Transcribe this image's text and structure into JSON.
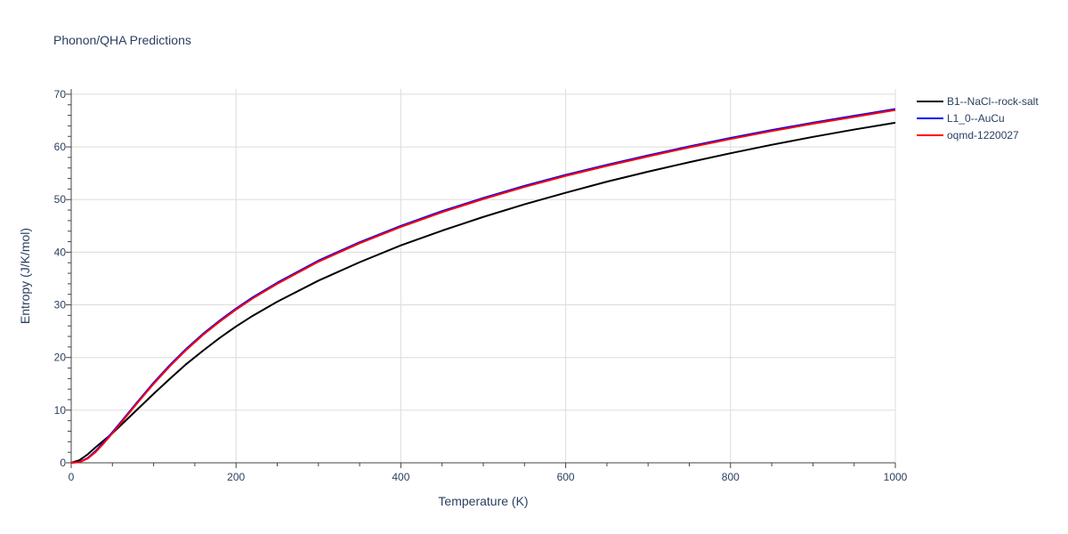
{
  "chart_data": {
    "type": "line",
    "title": "Phonon/QHA Predictions",
    "xlabel": "Temperature (K)",
    "ylabel": "Entropy (J/K/mol)",
    "xlim": [
      0,
      1000
    ],
    "ylim": [
      0,
      71
    ],
    "x_ticks": [
      0,
      200,
      400,
      600,
      800,
      1000
    ],
    "y_ticks": [
      0,
      10,
      20,
      30,
      40,
      50,
      60,
      70
    ],
    "grid": true,
    "legend_position": "top-right",
    "series": [
      {
        "name": "B1--NaCl--rock-salt",
        "color": "#000000",
        "x": [
          0,
          10,
          20,
          30,
          40,
          50,
          60,
          80,
          100,
          120,
          140,
          160,
          180,
          200,
          220,
          250,
          300,
          350,
          400,
          450,
          500,
          550,
          600,
          650,
          700,
          750,
          800,
          850,
          900,
          950,
          1000
        ],
        "y": [
          0,
          0.5,
          1.6,
          3.0,
          4.3,
          5.6,
          7.1,
          10.1,
          13.1,
          16.0,
          18.8,
          21.3,
          23.7,
          25.9,
          27.9,
          30.6,
          34.6,
          38.1,
          41.3,
          44.1,
          46.7,
          49.1,
          51.3,
          53.4,
          55.3,
          57.1,
          58.8,
          60.4,
          61.9,
          63.3,
          64.6
        ]
      },
      {
        "name": "L1_0--AuCu",
        "color": "#0000ff",
        "x": [
          0,
          10,
          20,
          30,
          40,
          50,
          60,
          80,
          100,
          120,
          140,
          160,
          180,
          200,
          220,
          250,
          300,
          350,
          400,
          450,
          500,
          550,
          600,
          650,
          700,
          750,
          800,
          850,
          900,
          950,
          1000
        ],
        "y": [
          0,
          0.15,
          0.9,
          2.3,
          4.0,
          5.8,
          7.7,
          11.5,
          15.2,
          18.6,
          21.7,
          24.5,
          27.0,
          29.3,
          31.4,
          34.2,
          38.4,
          41.9,
          45.0,
          47.8,
          50.3,
          52.6,
          54.7,
          56.6,
          58.4,
          60.1,
          61.7,
          63.2,
          64.6,
          65.9,
          67.2
        ]
      },
      {
        "name": "oqmd-1220027",
        "color": "#ff0000",
        "x": [
          0,
          10,
          20,
          30,
          40,
          50,
          60,
          80,
          100,
          120,
          140,
          160,
          180,
          200,
          220,
          250,
          300,
          350,
          400,
          450,
          500,
          550,
          600,
          650,
          700,
          750,
          800,
          850,
          900,
          950,
          1000
        ],
        "y": [
          0,
          0.12,
          0.8,
          2.1,
          3.8,
          5.6,
          7.5,
          11.3,
          15.0,
          18.4,
          21.5,
          24.3,
          26.8,
          29.1,
          31.2,
          34.0,
          38.2,
          41.7,
          44.8,
          47.6,
          50.1,
          52.4,
          54.5,
          56.4,
          58.2,
          59.9,
          61.5,
          63.0,
          64.4,
          65.7,
          67.0
        ]
      }
    ]
  }
}
